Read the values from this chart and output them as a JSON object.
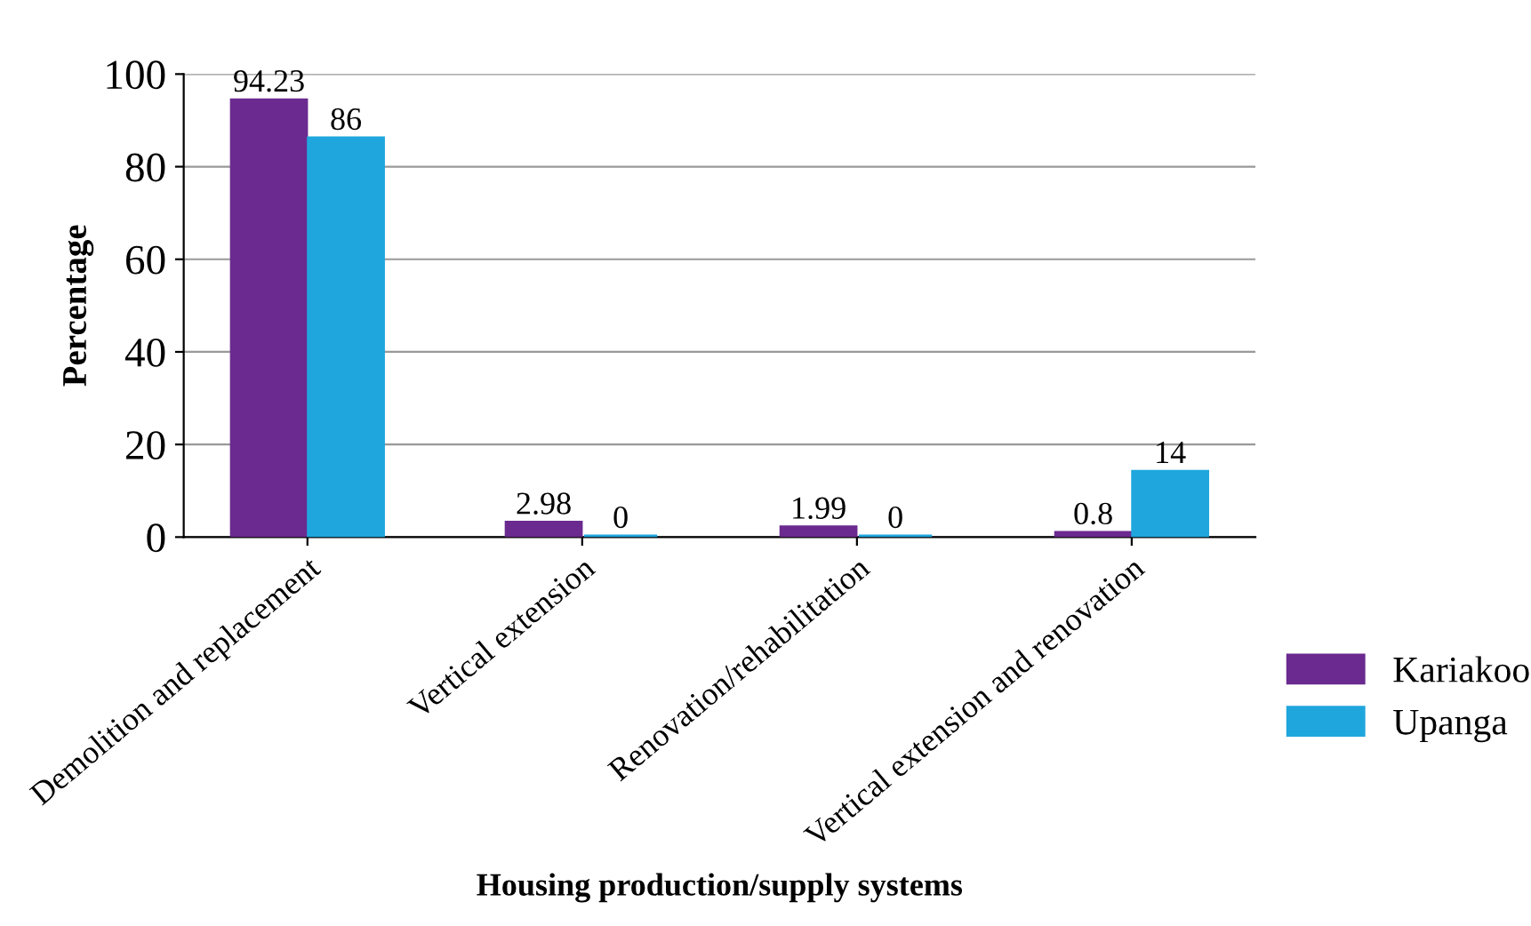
{
  "chart_data": {
    "type": "bar",
    "xlabel": "Housing production/supply systems",
    "ylabel": "Percentage",
    "categories": [
      "Demolition and replacement",
      "Vertical extension",
      "Renovation/rehabilitation",
      "Vertical extension and renovation"
    ],
    "series": [
      {
        "name": "Kariakoo",
        "color": "#6b2a8f",
        "values": [
          94.23,
          2.98,
          1.99,
          0.8
        ]
      },
      {
        "name": "Upanga",
        "color": "#1fa6dd",
        "values": [
          86,
          0,
          0,
          14
        ]
      }
    ],
    "ylim": [
      0,
      100
    ],
    "yticks": [
      0,
      20,
      40,
      60,
      80,
      100
    ],
    "grid": "y",
    "legend": "right",
    "data_labels": true
  }
}
